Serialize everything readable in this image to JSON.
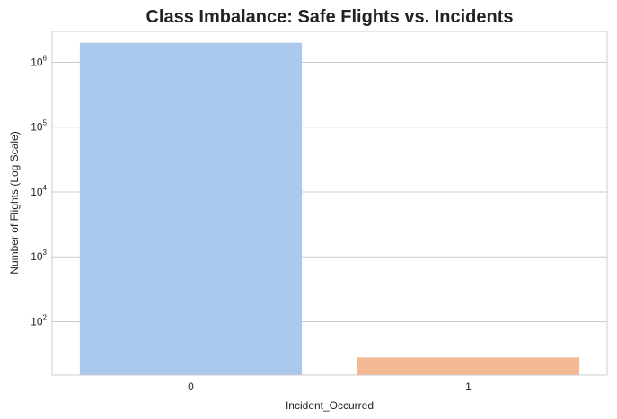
{
  "chart_data": {
    "type": "bar",
    "title": "Class Imbalance: Safe Flights vs. Incidents",
    "xlabel": "Incident_Occurred",
    "ylabel": "Number of Flights (Log Scale)",
    "categories": [
      "0",
      "1"
    ],
    "values": [
      2000000,
      28
    ],
    "colors": [
      "#abc9ed",
      "#f2b994"
    ],
    "y_scale": "log",
    "yticks": [
      {
        "value": 100,
        "base": "10",
        "exp": "2"
      },
      {
        "value": 1000,
        "base": "10",
        "exp": "3"
      },
      {
        "value": 10000,
        "base": "10",
        "exp": "4"
      },
      {
        "value": 100000,
        "base": "10",
        "exp": "5"
      },
      {
        "value": 1000000,
        "base": "10",
        "exp": "6"
      }
    ],
    "ylim": [
      15,
      3000000
    ],
    "grid": true,
    "grid_axis": "y",
    "frame_color": "#cccccc",
    "grid_color": "#cccccc"
  }
}
